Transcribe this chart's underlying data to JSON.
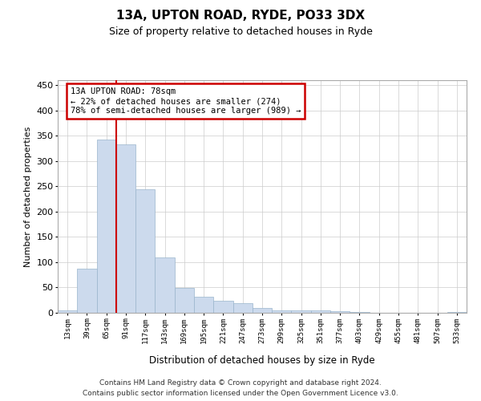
{
  "title": "13A, UPTON ROAD, RYDE, PO33 3DX",
  "subtitle": "Size of property relative to detached houses in Ryde",
  "xlabel": "Distribution of detached houses by size in Ryde",
  "ylabel": "Number of detached properties",
  "bar_color": "#ccdaed",
  "bar_edge_color": "#9ab4cc",
  "background_color": "#ffffff",
  "grid_color": "#cccccc",
  "vline_color": "#cc0000",
  "annotation_text": "13A UPTON ROAD: 78sqm\n← 22% of detached houses are smaller (274)\n78% of semi-detached houses are larger (989) →",
  "categories": [
    "13sqm",
    "39sqm",
    "65sqm",
    "91sqm",
    "117sqm",
    "143sqm",
    "169sqm",
    "195sqm",
    "221sqm",
    "247sqm",
    "273sqm",
    "299sqm",
    "325sqm",
    "351sqm",
    "377sqm",
    "403sqm",
    "429sqm",
    "455sqm",
    "481sqm",
    "507sqm",
    "533sqm"
  ],
  "values": [
    5,
    88,
    342,
    333,
    244,
    109,
    49,
    31,
    24,
    19,
    9,
    5,
    4,
    4,
    3,
    1,
    0,
    0,
    0,
    0,
    1
  ],
  "ylim": [
    0,
    460
  ],
  "yticks": [
    0,
    50,
    100,
    150,
    200,
    250,
    300,
    350,
    400,
    450
  ],
  "vline_bin_index": 2,
  "footnote_line1": "Contains HM Land Registry data © Crown copyright and database right 2024.",
  "footnote_line2": "Contains public sector information licensed under the Open Government Licence v3.0."
}
